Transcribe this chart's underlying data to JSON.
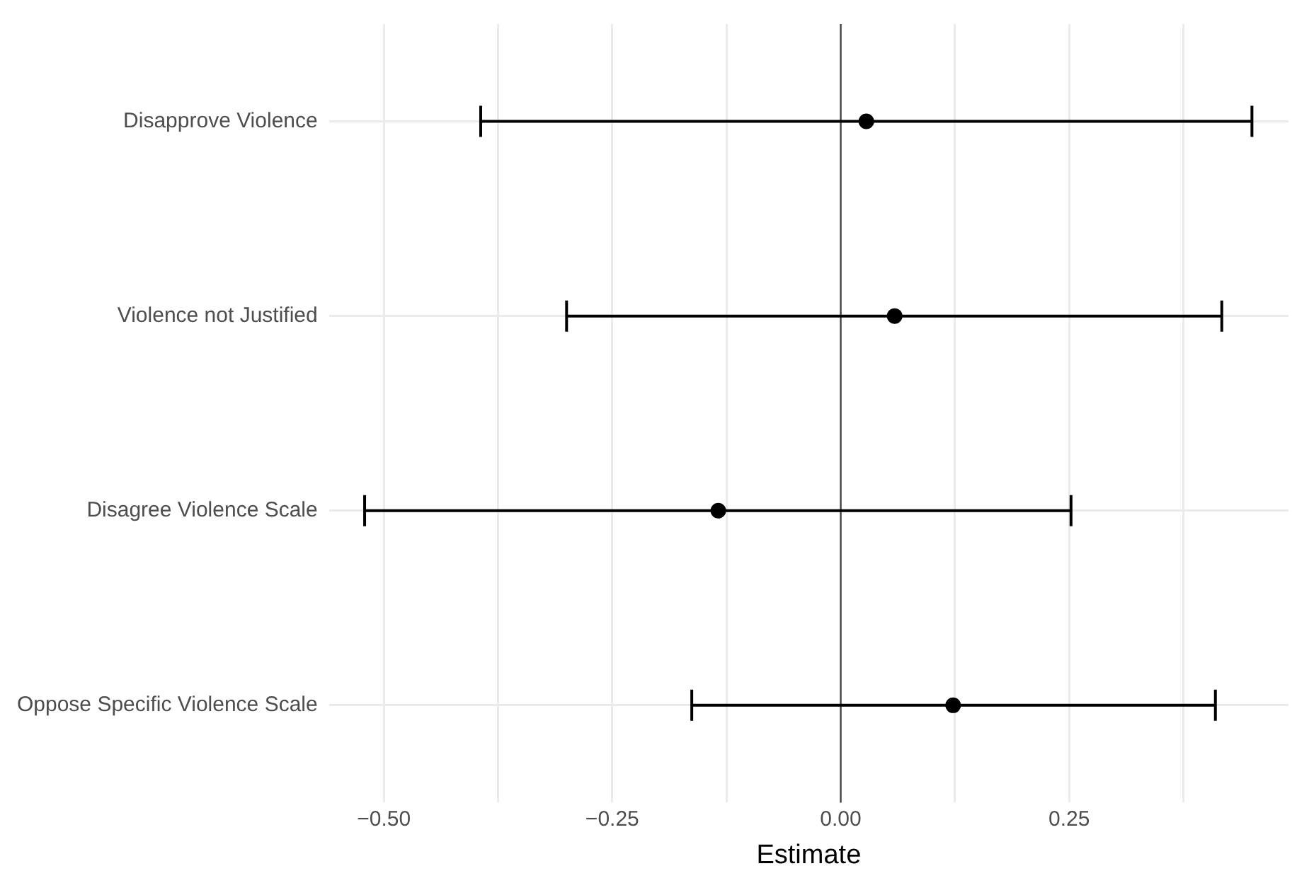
{
  "chart_data": {
    "type": "scatter",
    "orientation": "horizontal",
    "xlabel": "Estimate",
    "categories": [
      "Disapprove Violence",
      "Violence not Justified",
      "Disagree Violence Scale",
      "Oppose Specific Violence Scale"
    ],
    "values": [
      0.028,
      0.059,
      -0.134,
      0.123
    ],
    "errors": [
      [
        -0.394,
        0.45
      ],
      [
        -0.3,
        0.417
      ],
      [
        -0.521,
        0.252
      ],
      [
        -0.163,
        0.41
      ]
    ],
    "color": "#000000",
    "marker": "circle",
    "xlim": [
      -0.56,
      0.49
    ],
    "xticks": [
      {
        "value": -0.5,
        "label": "−0.50"
      },
      {
        "value": -0.375,
        "label": null
      },
      {
        "value": -0.25,
        "label": "−0.25"
      },
      {
        "value": -0.125,
        "label": null
      },
      {
        "value": 0,
        "label": "0.00"
      },
      {
        "value": 0.125,
        "label": null
      },
      {
        "value": 0.25,
        "label": "0.25"
      },
      {
        "value": 0.375,
        "label": null
      }
    ],
    "ref_lines": [
      {
        "axis": "x",
        "value": 0,
        "color": "#444444"
      }
    ],
    "grid": true,
    "legend": false
  }
}
